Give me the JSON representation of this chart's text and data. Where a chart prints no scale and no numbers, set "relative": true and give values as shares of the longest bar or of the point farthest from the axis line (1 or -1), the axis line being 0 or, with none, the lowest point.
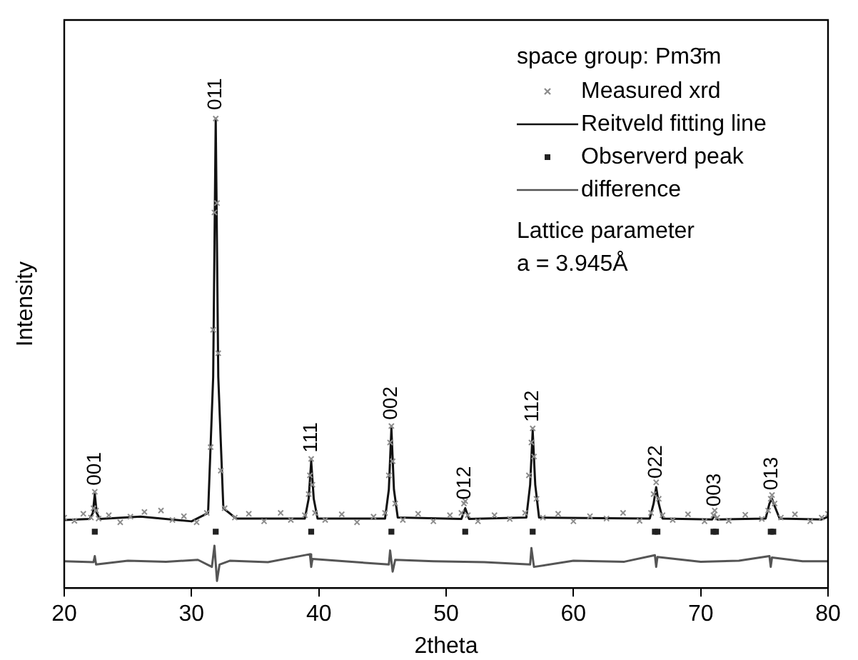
{
  "chart_data": {
    "type": "line",
    "relative": true,
    "xlabel": "2theta",
    "ylabel": "Intensity",
    "xlim": [
      20,
      80
    ],
    "xticks": [
      20,
      30,
      40,
      50,
      60,
      70,
      80
    ],
    "grid": false,
    "legend": "top right",
    "legend_title": "space group: Pm3̄m",
    "series": [
      {
        "name": "Measured xrd",
        "type": "scatter",
        "marker": "cross",
        "color": "#8c8c8c",
        "x": [
          20,
          20.8,
          21.5,
          22.1,
          22.3,
          22.4,
          22.5,
          22.7,
          23.5,
          24.4,
          25.2,
          26.3,
          27.6,
          28.5,
          29.4,
          30.4,
          31.2,
          31.5,
          31.7,
          31.8,
          31.9,
          32.0,
          32.1,
          32.3,
          32.6,
          33.4,
          34.5,
          35.7,
          37.0,
          37.8,
          38.9,
          39.2,
          39.3,
          39.4,
          39.5,
          39.7,
          40.5,
          41.8,
          43.0,
          44.3,
          45.2,
          45.5,
          45.6,
          45.7,
          45.8,
          46.0,
          46.6,
          47.8,
          49.0,
          50.3,
          51.2,
          51.4,
          51.5,
          51.7,
          52.5,
          53.8,
          55.0,
          56.2,
          56.5,
          56.7,
          56.8,
          56.9,
          57.1,
          57.6,
          58.8,
          60.0,
          61.3,
          62.6,
          63.9,
          65.2,
          66.1,
          66.3,
          66.5,
          66.7,
          67.0,
          67.8,
          69.0,
          70.3,
          71.0,
          71.1,
          71.3,
          72.2,
          73.5,
          74.8,
          75.3,
          75.5,
          75.6,
          75.8,
          76.3,
          77.4,
          78.6,
          79.5,
          80
        ],
        "values": [
          0.15,
          0.143,
          0.158,
          0.15,
          0.17,
          0.205,
          0.165,
          0.148,
          0.155,
          0.14,
          0.152,
          0.162,
          0.165,
          0.145,
          0.153,
          0.14,
          0.16,
          0.3,
          0.55,
          0.8,
          1.0,
          0.82,
          0.5,
          0.25,
          0.17,
          0.15,
          0.158,
          0.142,
          0.16,
          0.145,
          0.155,
          0.2,
          0.24,
          0.275,
          0.22,
          0.16,
          0.145,
          0.157,
          0.14,
          0.152,
          0.16,
          0.24,
          0.31,
          0.345,
          0.27,
          0.18,
          0.145,
          0.158,
          0.142,
          0.155,
          0.16,
          0.18,
          0.185,
          0.155,
          0.142,
          0.155,
          0.147,
          0.16,
          0.24,
          0.31,
          0.34,
          0.28,
          0.19,
          0.15,
          0.158,
          0.142,
          0.153,
          0.148,
          0.16,
          0.143,
          0.16,
          0.2,
          0.225,
          0.19,
          0.155,
          0.145,
          0.157,
          0.142,
          0.155,
          0.165,
          0.15,
          0.143,
          0.156,
          0.147,
          0.165,
          0.19,
          0.198,
          0.18,
          0.15,
          0.157,
          0.142,
          0.15,
          0.158
        ]
      },
      {
        "name": "Reitveld fitting line",
        "type": "line",
        "marker": "none",
        "color": "#111111",
        "x": [
          20,
          22.0,
          22.25,
          22.4,
          22.55,
          22.8,
          26,
          30,
          31.3,
          31.7,
          31.9,
          32.1,
          32.5,
          33.5,
          38.9,
          39.2,
          39.4,
          39.6,
          39.9,
          45.2,
          45.5,
          45.7,
          45.9,
          46.2,
          51.2,
          51.5,
          51.8,
          56.3,
          56.6,
          56.8,
          57.0,
          57.3,
          66.0,
          66.3,
          66.5,
          66.7,
          67.0,
          70.9,
          71.1,
          71.3,
          75.1,
          75.4,
          75.6,
          75.8,
          76.2,
          79.5,
          80
        ],
        "values": [
          0.145,
          0.147,
          0.16,
          0.2,
          0.16,
          0.147,
          0.152,
          0.142,
          0.16,
          0.45,
          1.0,
          0.45,
          0.17,
          0.148,
          0.148,
          0.19,
          0.27,
          0.19,
          0.148,
          0.148,
          0.21,
          0.34,
          0.21,
          0.15,
          0.147,
          0.17,
          0.147,
          0.15,
          0.22,
          0.335,
          0.22,
          0.15,
          0.148,
          0.18,
          0.215,
          0.18,
          0.148,
          0.146,
          0.155,
          0.146,
          0.148,
          0.18,
          0.19,
          0.175,
          0.148,
          0.146,
          0.152
        ]
      },
      {
        "name": "Observerd peak",
        "type": "scatter",
        "marker": "square",
        "color": "#222222",
        "x": [
          22.4,
          31.9,
          39.4,
          45.7,
          51.5,
          56.8,
          66.4,
          66.6,
          71.0,
          71.2,
          75.5,
          75.7
        ],
        "values": [
          0.12,
          0.12,
          0.12,
          0.12,
          0.12,
          0.12,
          0.12,
          0.12,
          0.12,
          0.12,
          0.12,
          0.12
        ]
      },
      {
        "name": "difference",
        "type": "line",
        "marker": "none",
        "color": "#555555",
        "x": [
          20,
          22.3,
          22.4,
          22.5,
          25,
          28,
          30.5,
          31.6,
          31.8,
          32.0,
          32.2,
          33,
          36,
          39.3,
          39.4,
          39.5,
          42,
          45.5,
          45.6,
          45.8,
          46.0,
          49,
          53,
          56.6,
          56.7,
          56.9,
          60,
          64,
          66.4,
          66.5,
          66.6,
          70,
          73,
          75.4,
          75.5,
          75.6,
          78,
          80
        ],
        "values": [
          0.057,
          0.055,
          0.068,
          0.05,
          0.058,
          0.056,
          0.06,
          0.045,
          0.09,
          0.015,
          0.05,
          0.058,
          0.055,
          0.072,
          0.045,
          0.062,
          0.057,
          0.05,
          0.08,
          0.035,
          0.06,
          0.057,
          0.055,
          0.05,
          0.085,
          0.045,
          0.058,
          0.056,
          0.07,
          0.045,
          0.066,
          0.056,
          0.058,
          0.068,
          0.045,
          0.065,
          0.057,
          0.057
        ]
      }
    ],
    "annotations": [
      {
        "text": "001",
        "x": 22.4,
        "y": 0.2
      },
      {
        "text": "011",
        "x": 31.9,
        "y": 1.0
      },
      {
        "text": "111",
        "x": 39.4,
        "y": 0.27
      },
      {
        "text": "002",
        "x": 45.7,
        "y": 0.34
      },
      {
        "text": "012",
        "x": 51.5,
        "y": 0.17
      },
      {
        "text": "112",
        "x": 56.8,
        "y": 0.335
      },
      {
        "text": "022",
        "x": 66.5,
        "y": 0.215
      },
      {
        "text": "003",
        "x": 71.1,
        "y": 0.155
      },
      {
        "text": "013",
        "x": 75.6,
        "y": 0.19
      },
      "Lattice parameter",
      "a = 3.945Å"
    ]
  }
}
